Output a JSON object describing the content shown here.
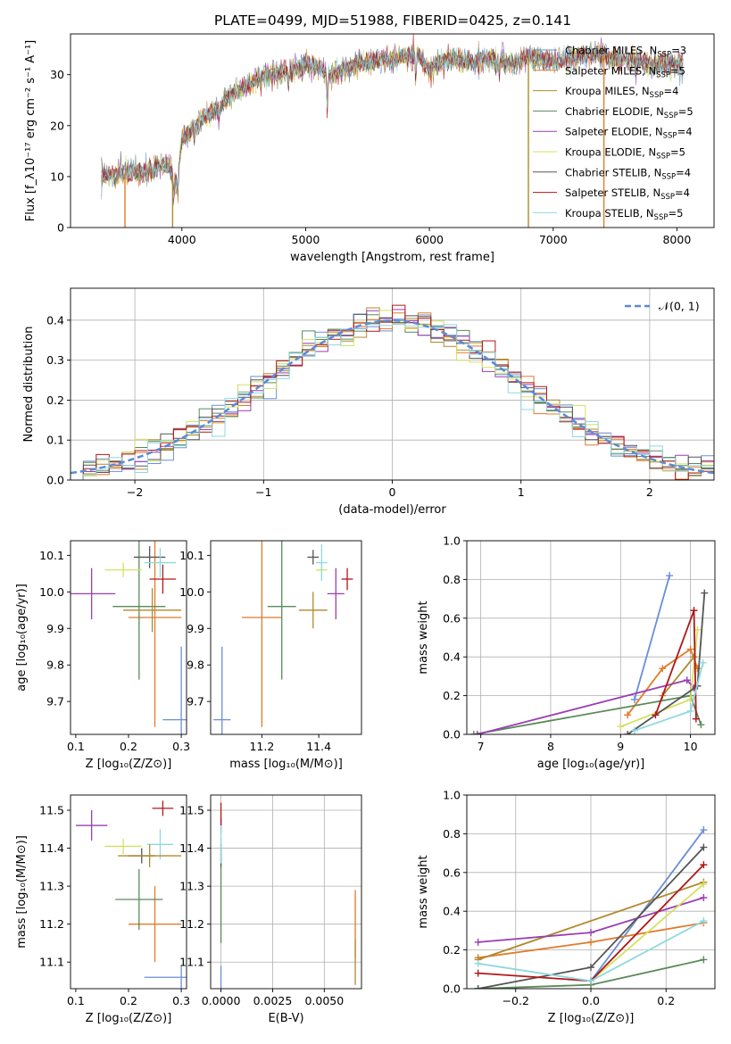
{
  "title": "PLATE=0499, MJD=51988, FIBERID=0425, z=0.141",
  "models": [
    {
      "name": "Chabrier MILES",
      "nssp": "3",
      "color": "#6a8fd5"
    },
    {
      "name": "Salpeter MILES",
      "nssp": "5",
      "color": "#e07b2b"
    },
    {
      "name": "Kroupa MILES",
      "nssp": "4",
      "color": "#b08a2e"
    },
    {
      "name": "Chabrier ELODIE",
      "nssp": "5",
      "color": "#5a8a5a"
    },
    {
      "name": "Salpeter ELODIE",
      "nssp": "4",
      "color": "#9a3fb2"
    },
    {
      "name": "Kroupa ELODIE",
      "nssp": "5",
      "color": "#d5e060"
    },
    {
      "name": "Chabrier STELIB",
      "nssp": "4",
      "color": "#555555"
    },
    {
      "name": "Salpeter STELIB",
      "nssp": "4",
      "color": "#b01818"
    },
    {
      "name": "Kroupa STELIB",
      "nssp": "5",
      "color": "#8fd8e0"
    }
  ],
  "chart_data": [
    {
      "id": "spectrum",
      "type": "line",
      "xlabel": "wavelength [Angstrom, rest frame]",
      "ylabel": "Flux [f_λ10⁻¹⁷ erg cm⁻² s⁻¹ A⁻¹]",
      "xlim": [
        3100,
        8300
      ],
      "ylim": [
        0,
        38
      ],
      "xticks": [
        4000,
        5000,
        6000,
        7000,
        8000
      ],
      "yticks": [
        0,
        10,
        20,
        30
      ],
      "continuum": {
        "x": [
          3350,
          3500,
          3600,
          3700,
          3800,
          3900,
          3950,
          4000,
          4100,
          4200,
          4300,
          4400,
          4500,
          4600,
          4700,
          4800,
          4900,
          5000,
          5100,
          5200,
          5300,
          5400,
          5500,
          5600,
          5700,
          5800,
          5900,
          6000,
          6100,
          6200,
          6300,
          6400,
          6500,
          6600,
          6700,
          6800,
          6900,
          7000,
          7100,
          7200,
          7300,
          7400,
          7500,
          7600,
          7700,
          7800,
          7900,
          8000,
          8050
        ],
        "y": [
          10,
          10.5,
          11,
          10.5,
          12,
          12,
          8,
          17,
          20,
          22,
          24,
          26,
          27.5,
          29,
          30,
          30.5,
          31,
          32,
          31.5,
          30,
          31,
          32,
          32.5,
          33,
          33,
          33.5,
          34,
          31,
          32.5,
          33,
          32.5,
          33,
          33,
          32.5,
          32.5,
          33.5,
          33,
          32.5,
          33,
          33.5,
          34,
          34,
          33,
          33,
          32.5,
          32,
          32,
          32,
          32
        ]
      }
    },
    {
      "id": "residuals",
      "type": "area",
      "xlabel": "(data-model)/error",
      "ylabel": "Normed distribution",
      "xlim": [
        -2.5,
        2.5
      ],
      "ylim": [
        0,
        0.48
      ],
      "xticks": [
        -2,
        -1,
        0,
        1,
        2
      ],
      "yticks": [
        0,
        0.1,
        0.2,
        0.3,
        0.4
      ],
      "legend": "$\\mathcal{N}(0,1)$",
      "legend_display": "𝒩(0, 1)",
      "legend_position": "top-right",
      "gaussian": {
        "mean": 0,
        "sigma": 1
      }
    },
    {
      "id": "age_vs_Z",
      "type": "scatter",
      "xlabel": "Z [log₁₀(Z/Z⊙)]",
      "ylabel": "age  [log₁₀(age/yr)]",
      "xlim": [
        0.09,
        0.31
      ],
      "ylim": [
        9.61,
        10.14
      ],
      "xticks": [
        0.1,
        0.2,
        0.3
      ],
      "yticks": [
        9.7,
        9.8,
        9.9,
        10.0,
        10.1
      ],
      "points": [
        {
          "m": 0,
          "x": 0.3,
          "y": 9.65,
          "xerr": 0.035,
          "yerr": 0.2
        },
        {
          "m": 1,
          "x": 0.25,
          "y": 9.93,
          "xerr": 0.05,
          "yerr": 0.3
        },
        {
          "m": 3,
          "x": 0.22,
          "y": 9.96,
          "xerr": 0.05,
          "yerr": 0.2
        },
        {
          "m": 4,
          "x": 0.13,
          "y": 9.995,
          "xerr": 0.045,
          "yerr": 0.07
        },
        {
          "m": 5,
          "x": 0.19,
          "y": 10.06,
          "xerr": 0.035,
          "yerr": 0.02
        },
        {
          "m": 6,
          "x": 0.24,
          "y": 10.095,
          "xerr": 0.03,
          "yerr": 0.03
        },
        {
          "m": 7,
          "x": 0.265,
          "y": 10.035,
          "xerr": 0.025,
          "yerr": 0.04
        },
        {
          "m": 8,
          "x": 0.26,
          "y": 10.08,
          "xerr": 0.03,
          "yerr": 0.04
        },
        {
          "m": 2,
          "x": 0.245,
          "y": 9.95,
          "xerr": 0.055,
          "yerr": 0.06
        }
      ]
    },
    {
      "id": "age_vs_mass",
      "type": "scatter",
      "xlabel": "mass [log₁₀(M/M⊙)]",
      "ylabel": "",
      "xlim": [
        11.02,
        11.55
      ],
      "ylim": [
        9.61,
        10.14
      ],
      "xticks": [
        11.2,
        11.4
      ],
      "yticks": [
        9.7,
        9.8,
        9.9,
        10.0,
        10.1
      ],
      "points": [
        {
          "m": 0,
          "x": 11.06,
          "y": 9.65,
          "xerr": 0.03,
          "yerr": 0.2
        },
        {
          "m": 1,
          "x": 11.2,
          "y": 9.93,
          "xerr": 0.07,
          "yerr": 0.3
        },
        {
          "m": 3,
          "x": 11.27,
          "y": 9.96,
          "xerr": 0.05,
          "yerr": 0.2
        },
        {
          "m": 4,
          "x": 11.46,
          "y": 9.995,
          "xerr": 0.03,
          "yerr": 0.07
        },
        {
          "m": 5,
          "x": 11.41,
          "y": 10.06,
          "xerr": 0.02,
          "yerr": 0.02
        },
        {
          "m": 6,
          "x": 11.38,
          "y": 10.095,
          "xerr": 0.02,
          "yerr": 0.02
        },
        {
          "m": 7,
          "x": 11.5,
          "y": 10.035,
          "xerr": 0.02,
          "yerr": 0.03
        },
        {
          "m": 8,
          "x": 11.41,
          "y": 10.08,
          "xerr": 0.02,
          "yerr": 0.05
        },
        {
          "m": 2,
          "x": 11.38,
          "y": 9.95,
          "xerr": 0.05,
          "yerr": 0.05
        }
      ]
    },
    {
      "id": "weight_vs_age",
      "type": "line",
      "xlabel": "age  [log₁₀(age/yr)]",
      "ylabel": "mass weight",
      "xlim": [
        6.8,
        10.35
      ],
      "ylim": [
        0,
        1.0
      ],
      "xticks": [
        7,
        8,
        9,
        10
      ],
      "yticks": [
        0,
        0.2,
        0.4,
        0.6,
        0.8,
        1.0
      ],
      "series": [
        {
          "m": 0,
          "x": [
            9.2,
            9.7
          ],
          "y": [
            0.18,
            0.82
          ]
        },
        {
          "m": 1,
          "x": [
            9.1,
            9.6,
            10.0,
            10.1
          ],
          "y": [
            0.1,
            0.34,
            0.44,
            0.34
          ]
        },
        {
          "m": 2,
          "x": [
            9.6,
            10.05
          ],
          "y": [
            0.2,
            0.4
          ]
        },
        {
          "m": 3,
          "x": [
            6.9,
            10.0,
            10.15
          ],
          "y": [
            0.0,
            0.2,
            0.05
          ]
        },
        {
          "m": 4,
          "x": [
            6.95,
            9.95,
            10.05
          ],
          "y": [
            0.0,
            0.28,
            0.24
          ]
        },
        {
          "m": 5,
          "x": [
            9.0,
            10.0,
            10.1
          ],
          "y": [
            0.04,
            0.18,
            0.54
          ]
        },
        {
          "m": 6,
          "x": [
            9.1,
            10.1,
            10.2
          ],
          "y": [
            0.0,
            0.25,
            0.73
          ]
        },
        {
          "m": 7,
          "x": [
            9.5,
            10.05,
            10.08
          ],
          "y": [
            0.1,
            0.64,
            0.08
          ]
        },
        {
          "m": 8,
          "x": [
            9.2,
            10.0,
            10.18
          ],
          "y": [
            0.02,
            0.12,
            0.37
          ]
        }
      ]
    },
    {
      "id": "mass_vs_Z",
      "type": "scatter",
      "xlabel": "Z [log₁₀(Z/Z⊙)]",
      "ylabel": "mass [log₁₀(M/M⊙)]",
      "xlim": [
        0.09,
        0.31
      ],
      "ylim": [
        11.03,
        11.54
      ],
      "xticks": [
        0.1,
        0.2,
        0.3
      ],
      "yticks": [
        11.1,
        11.2,
        11.3,
        11.4,
        11.5
      ],
      "points": [
        {
          "m": 0,
          "x": 0.3,
          "y": 11.06,
          "xerr": 0.07,
          "yerr": 0.03
        },
        {
          "m": 1,
          "x": 0.25,
          "y": 11.2,
          "xerr": 0.05,
          "yerr": 0.1
        },
        {
          "m": 3,
          "x": 0.22,
          "y": 11.265,
          "xerr": 0.045,
          "yerr": 0.08
        },
        {
          "m": 4,
          "x": 0.13,
          "y": 11.46,
          "xerr": 0.03,
          "yerr": 0.04
        },
        {
          "m": 5,
          "x": 0.19,
          "y": 11.405,
          "xerr": 0.035,
          "yerr": 0.02
        },
        {
          "m": 6,
          "x": 0.225,
          "y": 11.38,
          "xerr": 0.025,
          "yerr": 0.02
        },
        {
          "m": 7,
          "x": 0.265,
          "y": 11.505,
          "xerr": 0.02,
          "yerr": 0.02
        },
        {
          "m": 8,
          "x": 0.26,
          "y": 11.41,
          "xerr": 0.025,
          "yerr": 0.04
        },
        {
          "m": 2,
          "x": 0.24,
          "y": 11.38,
          "xerr": 0.06,
          "yerr": 0.03
        }
      ]
    },
    {
      "id": "mass_vs_ebv",
      "type": "scatter",
      "xlabel": "E(B-V)",
      "ylabel": "",
      "xlim": [
        -0.0005,
        0.0068
      ],
      "ylim": [
        11.03,
        11.54
      ],
      "xticks": [
        0.0,
        0.0025,
        0.005
      ],
      "xticklabels": [
        "0.0000",
        "0.0025",
        "0.0050"
      ],
      "yticks": [
        11.1,
        11.2,
        11.3,
        11.4,
        11.5
      ],
      "points": [
        {
          "m": 0,
          "x": 0.0,
          "y": 11.06,
          "xerr": 0,
          "yerr": 0.03
        },
        {
          "m": 1,
          "x": 0.0065,
          "y": 11.2,
          "xerr": 0,
          "yerr": 0.09
        },
        {
          "m": 3,
          "x": 0.0,
          "y": 11.27,
          "xerr": 0,
          "yerr": 0.12
        },
        {
          "m": 4,
          "x": 0.0,
          "y": 11.46,
          "xerr": 0,
          "yerr": 0.02
        },
        {
          "m": 5,
          "x": 0.0,
          "y": 11.405,
          "xerr": 0,
          "yerr": 0.02
        },
        {
          "m": 6,
          "x": 0.0,
          "y": 11.38,
          "xerr": 0,
          "yerr": 0.03
        },
        {
          "m": 7,
          "x": 0.0,
          "y": 11.49,
          "xerr": 0,
          "yerr": 0.03
        },
        {
          "m": 8,
          "x": 0.0,
          "y": 11.41,
          "xerr": 0,
          "yerr": 0.05
        },
        {
          "m": 2,
          "x": 0.0065,
          "y": 11.1,
          "xerr": 0,
          "yerr": 0.06
        }
      ]
    },
    {
      "id": "weight_vs_Z",
      "type": "line",
      "xlabel": "Z [log₁₀(Z/Z⊙)]",
      "ylabel": "mass weight",
      "xlim": [
        -0.33,
        0.33
      ],
      "ylim": [
        0,
        1.0
      ],
      "xticks": [
        -0.2,
        0.0,
        0.2
      ],
      "yticks": [
        0,
        0.2,
        0.4,
        0.6,
        0.8,
        1.0
      ],
      "series": [
        {
          "m": 0,
          "x": [
            0.0,
            0.3
          ],
          "y": [
            0.04,
            0.82
          ]
        },
        {
          "m": 1,
          "x": [
            -0.3,
            0.0,
            0.3
          ],
          "y": [
            0.16,
            0.24,
            0.34
          ]
        },
        {
          "m": 2,
          "x": [
            -0.3,
            0.3
          ],
          "y": [
            0.15,
            0.55
          ]
        },
        {
          "m": 3,
          "x": [
            -0.3,
            0.0,
            0.3
          ],
          "y": [
            0.0,
            0.02,
            0.15
          ]
        },
        {
          "m": 4,
          "x": [
            -0.3,
            0.0,
            0.3
          ],
          "y": [
            0.24,
            0.29,
            0.47
          ]
        },
        {
          "m": 5,
          "x": [
            0.0,
            0.3
          ],
          "y": [
            0.04,
            0.54
          ]
        },
        {
          "m": 6,
          "x": [
            -0.3,
            0.0,
            0.3
          ],
          "y": [
            0.0,
            0.11,
            0.73
          ]
        },
        {
          "m": 7,
          "x": [
            -0.3,
            0.0,
            0.3
          ],
          "y": [
            0.08,
            0.04,
            0.64
          ]
        },
        {
          "m": 8,
          "x": [
            -0.3,
            0.0,
            0.3
          ],
          "y": [
            0.13,
            0.04,
            0.35
          ]
        }
      ]
    }
  ]
}
